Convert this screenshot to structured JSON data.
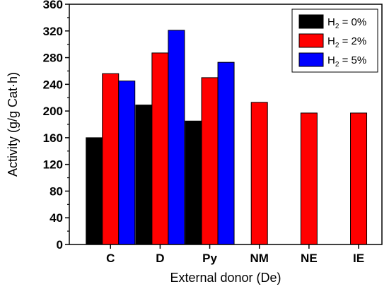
{
  "chart_data": {
    "type": "bar",
    "xlabel": "External donor (De)",
    "ylabel": "Activity (g/g Cat·h)",
    "ylim": [
      0,
      360
    ],
    "yticks": [
      0,
      40,
      80,
      120,
      160,
      200,
      240,
      280,
      320,
      360
    ],
    "categories": [
      "C",
      "D",
      "Py",
      "NM",
      "NE",
      "IE"
    ],
    "legend_position": "top-right",
    "series": [
      {
        "name": "H2 = 0%",
        "legend_prefix": "H",
        "legend_sub": "2",
        "legend_suffix": " = 0%",
        "color": "#000000",
        "values": [
          160,
          209,
          185,
          null,
          null,
          null
        ]
      },
      {
        "name": "H2 = 2%",
        "legend_prefix": "H",
        "legend_sub": "2",
        "legend_suffix": " = 2%",
        "color": "#ff0000",
        "values": [
          256,
          287,
          250,
          213,
          197,
          197
        ]
      },
      {
        "name": "H2 = 5%",
        "legend_prefix": "H",
        "legend_sub": "2",
        "legend_suffix": " = 5%",
        "color": "#0000ff",
        "values": [
          245,
          321,
          273,
          null,
          null,
          null
        ]
      }
    ]
  }
}
